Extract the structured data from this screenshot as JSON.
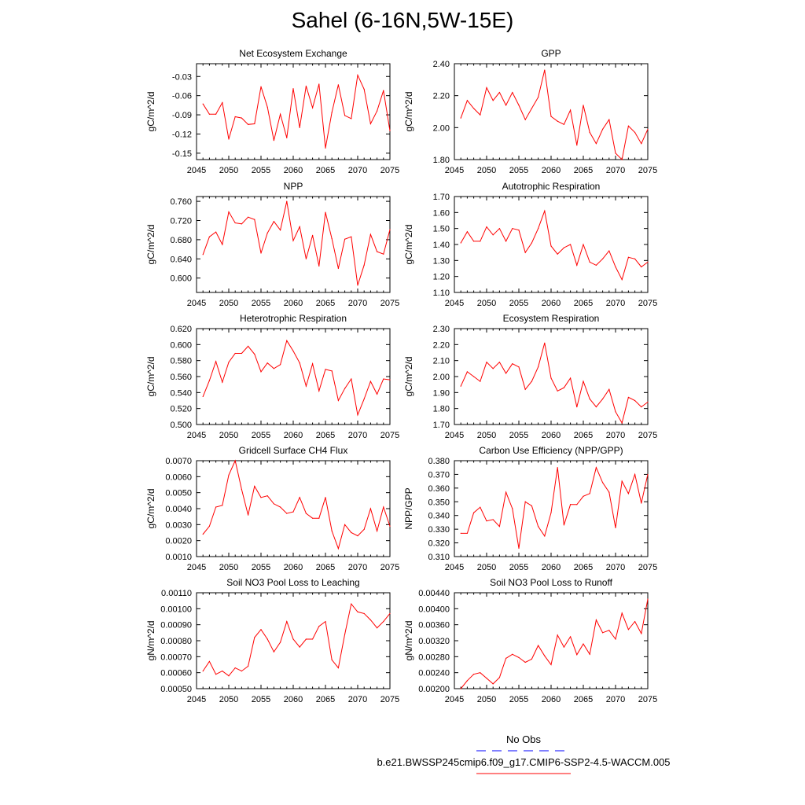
{
  "title": "Sahel (6-16N,5W-15E)",
  "colors": {
    "series": "#ff0000",
    "obs_line": "#0000ff",
    "axis": "#000000"
  },
  "legend": {
    "obs_label": "No Obs",
    "model_label": "b.e21.BWSSP245cmip6.f09_g17.CMIP6-SSP2-4.5-WACCM.005"
  },
  "chart_data": [
    {
      "type": "line",
      "title": "Net Ecosystem Exchange",
      "ylabel": "gC/m^2/d",
      "xlim": [
        2045,
        2075
      ],
      "ylim": [
        -0.16,
        -0.01
      ],
      "yticks": [
        "-0.15",
        "-0.12",
        "-0.09",
        "-0.06",
        "-0.03"
      ],
      "xticks": [
        "2045",
        "2050",
        "2055",
        "2060",
        "2065",
        "2070",
        "2075"
      ],
      "x": [
        2046,
        2047,
        2048,
        2049,
        2050,
        2051,
        2052,
        2053,
        2054,
        2055,
        2056,
        2057,
        2058,
        2059,
        2060,
        2061,
        2062,
        2063,
        2064,
        2065,
        2066,
        2067,
        2068,
        2069,
        2070,
        2071,
        2072,
        2073,
        2074,
        2075
      ],
      "values": [
        -0.073,
        -0.089,
        -0.089,
        -0.071,
        -0.128,
        -0.093,
        -0.095,
        -0.105,
        -0.104,
        -0.046,
        -0.078,
        -0.13,
        -0.089,
        -0.126,
        -0.049,
        -0.11,
        -0.045,
        -0.079,
        -0.042,
        -0.142,
        -0.086,
        -0.043,
        -0.091,
        -0.096,
        -0.028,
        -0.05,
        -0.104,
        -0.084,
        -0.052,
        -0.115
      ]
    },
    {
      "type": "line",
      "title": "GPP",
      "ylabel": "gC/m^2/d",
      "xlim": [
        2045,
        2075
      ],
      "ylim": [
        1.8,
        2.4
      ],
      "yticks": [
        "1.80",
        "2.00",
        "2.20",
        "2.40"
      ],
      "xticks": [
        "2045",
        "2050",
        "2055",
        "2060",
        "2065",
        "2070",
        "2075"
      ],
      "x": [
        2046,
        2047,
        2048,
        2049,
        2050,
        2051,
        2052,
        2053,
        2054,
        2055,
        2056,
        2057,
        2058,
        2059,
        2060,
        2061,
        2062,
        2063,
        2064,
        2065,
        2066,
        2067,
        2068,
        2069,
        2070,
        2071,
        2072,
        2073,
        2074,
        2075
      ],
      "values": [
        2.06,
        2.17,
        2.12,
        2.08,
        2.25,
        2.17,
        2.22,
        2.14,
        2.22,
        2.14,
        2.05,
        2.12,
        2.19,
        2.36,
        2.07,
        2.04,
        2.02,
        2.11,
        1.89,
        2.14,
        1.97,
        1.9,
        1.99,
        2.05,
        1.84,
        1.8,
        2.01,
        1.97,
        1.9,
        1.99
      ]
    },
    {
      "type": "line",
      "title": "NPP",
      "ylabel": "gC/m^2/d",
      "xlim": [
        2045,
        2075
      ],
      "ylim": [
        0.57,
        0.77
      ],
      "yticks": [
        "0.600",
        "0.640",
        "0.680",
        "0.720",
        "0.760"
      ],
      "xticks": [
        "2045",
        "2050",
        "2055",
        "2060",
        "2065",
        "2070",
        "2075"
      ],
      "x": [
        2046,
        2047,
        2048,
        2049,
        2050,
        2051,
        2052,
        2053,
        2054,
        2055,
        2056,
        2057,
        2058,
        2059,
        2060,
        2061,
        2062,
        2063,
        2064,
        2065,
        2066,
        2067,
        2068,
        2069,
        2070,
        2071,
        2072,
        2073,
        2074,
        2075
      ],
      "values": [
        0.649,
        0.686,
        0.696,
        0.67,
        0.738,
        0.715,
        0.713,
        0.727,
        0.722,
        0.652,
        0.694,
        0.718,
        0.7,
        0.76,
        0.678,
        0.707,
        0.64,
        0.689,
        0.625,
        0.737,
        0.682,
        0.62,
        0.681,
        0.686,
        0.585,
        0.627,
        0.691,
        0.655,
        0.65,
        0.701
      ]
    },
    {
      "type": "line",
      "title": "Autotrophic Respiration",
      "ylabel": "gC/m^2/d",
      "xlim": [
        2045,
        2075
      ],
      "ylim": [
        1.1,
        1.7
      ],
      "yticks": [
        "1.10",
        "1.20",
        "1.30",
        "1.40",
        "1.50",
        "1.60",
        "1.70"
      ],
      "xticks": [
        "2045",
        "2050",
        "2055",
        "2060",
        "2065",
        "2070",
        "2075"
      ],
      "x": [
        2046,
        2047,
        2048,
        2049,
        2050,
        2051,
        2052,
        2053,
        2054,
        2055,
        2056,
        2057,
        2058,
        2059,
        2060,
        2061,
        2062,
        2063,
        2064,
        2065,
        2066,
        2067,
        2068,
        2069,
        2070,
        2071,
        2072,
        2073,
        2074,
        2075
      ],
      "values": [
        1.41,
        1.48,
        1.42,
        1.42,
        1.51,
        1.46,
        1.5,
        1.42,
        1.5,
        1.49,
        1.35,
        1.41,
        1.5,
        1.61,
        1.39,
        1.34,
        1.38,
        1.4,
        1.27,
        1.4,
        1.29,
        1.27,
        1.31,
        1.36,
        1.26,
        1.18,
        1.32,
        1.31,
        1.26,
        1.29
      ]
    },
    {
      "type": "line",
      "title": "Heterotrophic Respiration",
      "ylabel": "gC/m^2/d",
      "xlim": [
        2045,
        2075
      ],
      "ylim": [
        0.5,
        0.62
      ],
      "yticks": [
        "0.500",
        "0.520",
        "0.540",
        "0.560",
        "0.580",
        "0.600",
        "0.620"
      ],
      "xticks": [
        "2045",
        "2050",
        "2055",
        "2060",
        "2065",
        "2070",
        "2075"
      ],
      "x": [
        2046,
        2047,
        2048,
        2049,
        2050,
        2051,
        2052,
        2053,
        2054,
        2055,
        2056,
        2057,
        2058,
        2059,
        2060,
        2061,
        2062,
        2063,
        2064,
        2065,
        2066,
        2067,
        2068,
        2069,
        2070,
        2071,
        2072,
        2073,
        2074,
        2075
      ],
      "values": [
        0.535,
        0.555,
        0.579,
        0.553,
        0.578,
        0.589,
        0.589,
        0.598,
        0.588,
        0.566,
        0.577,
        0.57,
        0.575,
        0.605,
        0.592,
        0.577,
        0.548,
        0.576,
        0.542,
        0.569,
        0.567,
        0.53,
        0.545,
        0.557,
        0.512,
        0.532,
        0.554,
        0.538,
        0.557,
        0.556
      ]
    },
    {
      "type": "line",
      "title": "Ecosystem Respiration",
      "ylabel": "gC/m^2/d",
      "xlim": [
        2045,
        2075
      ],
      "ylim": [
        1.7,
        2.3
      ],
      "yticks": [
        "1.70",
        "1.80",
        "1.90",
        "2.00",
        "2.10",
        "2.20",
        "2.30"
      ],
      "xticks": [
        "2045",
        "2050",
        "2055",
        "2060",
        "2065",
        "2070",
        "2075"
      ],
      "x": [
        2046,
        2047,
        2048,
        2049,
        2050,
        2051,
        2052,
        2053,
        2054,
        2055,
        2056,
        2057,
        2058,
        2059,
        2060,
        2061,
        2062,
        2063,
        2064,
        2065,
        2066,
        2067,
        2068,
        2069,
        2070,
        2071,
        2072,
        2073,
        2074,
        2075
      ],
      "values": [
        1.94,
        2.03,
        2.0,
        1.97,
        2.09,
        2.05,
        2.09,
        2.02,
        2.08,
        2.06,
        1.92,
        1.97,
        2.06,
        2.21,
        1.99,
        1.91,
        1.93,
        1.99,
        1.81,
        1.97,
        1.86,
        1.81,
        1.86,
        1.92,
        1.78,
        1.71,
        1.87,
        1.85,
        1.81,
        1.84
      ]
    },
    {
      "type": "line",
      "title": "Gridcell Surface CH4 Flux",
      "ylabel": "gC/m^2/d",
      "xlim": [
        2045,
        2075
      ],
      "ylim": [
        0.001,
        0.007
      ],
      "yticks": [
        "0.0010",
        "0.0020",
        "0.0030",
        "0.0040",
        "0.0050",
        "0.0060",
        "0.0070"
      ],
      "xticks": [
        "2045",
        "2050",
        "2055",
        "2060",
        "2065",
        "2070",
        "2075"
      ],
      "x": [
        2046,
        2047,
        2048,
        2049,
        2050,
        2051,
        2052,
        2053,
        2054,
        2055,
        2056,
        2057,
        2058,
        2059,
        2060,
        2061,
        2062,
        2063,
        2064,
        2065,
        2066,
        2067,
        2068,
        2069,
        2070,
        2071,
        2072,
        2073,
        2074,
        2075
      ],
      "values": [
        0.0024,
        0.0029,
        0.0041,
        0.0042,
        0.0061,
        0.007,
        0.0052,
        0.0036,
        0.0054,
        0.0047,
        0.0048,
        0.0043,
        0.0041,
        0.0037,
        0.0038,
        0.0047,
        0.0037,
        0.0034,
        0.0034,
        0.0047,
        0.0026,
        0.0015,
        0.003,
        0.0025,
        0.0023,
        0.0027,
        0.004,
        0.0026,
        0.0041,
        0.0029
      ]
    },
    {
      "type": "line",
      "title": "Carbon Use Efficiency (NPP/GPP)",
      "ylabel": "NPP/GPP",
      "xlim": [
        2045,
        2075
      ],
      "ylim": [
        0.31,
        0.38
      ],
      "yticks": [
        "0.310",
        "0.320",
        "0.330",
        "0.340",
        "0.350",
        "0.360",
        "0.370",
        "0.380"
      ],
      "xticks": [
        "2045",
        "2050",
        "2055",
        "2060",
        "2065",
        "2070",
        "2075"
      ],
      "x": [
        2046,
        2047,
        2048,
        2049,
        2050,
        2051,
        2052,
        2053,
        2054,
        2055,
        2056,
        2057,
        2058,
        2059,
        2060,
        2061,
        2062,
        2063,
        2064,
        2065,
        2066,
        2067,
        2068,
        2069,
        2070,
        2071,
        2072,
        2073,
        2074,
        2075
      ],
      "values": [
        0.327,
        0.327,
        0.342,
        0.346,
        0.336,
        0.337,
        0.332,
        0.357,
        0.345,
        0.316,
        0.35,
        0.347,
        0.332,
        0.325,
        0.342,
        0.375,
        0.333,
        0.348,
        0.348,
        0.354,
        0.356,
        0.375,
        0.364,
        0.357,
        0.331,
        0.365,
        0.356,
        0.37,
        0.349,
        0.37
      ]
    },
    {
      "type": "line",
      "title": "Soil NO3 Pool Loss to Leaching",
      "ylabel": "gN/m^2/d",
      "xlim": [
        2045,
        2075
      ],
      "ylim": [
        0.0005,
        0.0011
      ],
      "yticks": [
        "0.00050",
        "0.00060",
        "0.00070",
        "0.00080",
        "0.00090",
        "0.00100",
        "0.00110"
      ],
      "xticks": [
        "2045",
        "2050",
        "2055",
        "2060",
        "2065",
        "2070",
        "2075"
      ],
      "x": [
        2046,
        2047,
        2048,
        2049,
        2050,
        2051,
        2052,
        2053,
        2054,
        2055,
        2056,
        2057,
        2058,
        2059,
        2060,
        2061,
        2062,
        2063,
        2064,
        2065,
        2066,
        2067,
        2068,
        2069,
        2070,
        2071,
        2072,
        2073,
        2074,
        2075
      ],
      "values": [
        0.00061,
        0.00067,
        0.00059,
        0.00061,
        0.00058,
        0.00063,
        0.00061,
        0.00064,
        0.00082,
        0.00087,
        0.00081,
        0.00073,
        0.00079,
        0.00092,
        0.00081,
        0.00076,
        0.00081,
        0.00081,
        0.00089,
        0.00092,
        0.00068,
        0.00063,
        0.00084,
        0.00103,
        0.00098,
        0.00097,
        0.00093,
        0.00088,
        0.00092,
        0.00097
      ]
    },
    {
      "type": "line",
      "title": "Soil NO3 Pool Loss to Runoff",
      "ylabel": "gN/m^2/d",
      "xlim": [
        2045,
        2075
      ],
      "ylim": [
        0.002,
        0.0044
      ],
      "yticks": [
        "0.00200",
        "0.00240",
        "0.00280",
        "0.00320",
        "0.00360",
        "0.00400",
        "0.00440"
      ],
      "xticks": [
        "2045",
        "2050",
        "2055",
        "2060",
        "2065",
        "2070",
        "2075"
      ],
      "x": [
        2046,
        2047,
        2048,
        2049,
        2050,
        2051,
        2052,
        2053,
        2054,
        2055,
        2056,
        2057,
        2058,
        2059,
        2060,
        2061,
        2062,
        2063,
        2064,
        2065,
        2066,
        2067,
        2068,
        2069,
        2070,
        2071,
        2072,
        2073,
        2074,
        2075
      ],
      "values": [
        0.002,
        0.0022,
        0.00236,
        0.0024,
        0.00226,
        0.00212,
        0.00228,
        0.00276,
        0.00286,
        0.00278,
        0.00266,
        0.00274,
        0.00308,
        0.00282,
        0.0026,
        0.00334,
        0.00304,
        0.0033,
        0.00285,
        0.00312,
        0.00286,
        0.00372,
        0.0034,
        0.00346,
        0.00324,
        0.00389,
        0.00348,
        0.00368,
        0.00338,
        0.00424
      ]
    }
  ]
}
